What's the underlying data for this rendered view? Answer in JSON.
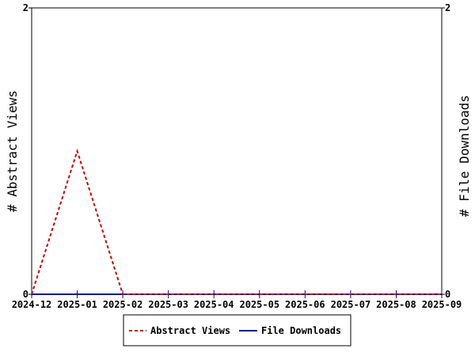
{
  "chart_data": {
    "type": "line",
    "x": [
      "2024-12",
      "2025-01",
      "2025-02",
      "2025-03",
      "2025-04",
      "2025-05",
      "2025-06",
      "2025-07",
      "2025-08",
      "2025-09"
    ],
    "x_tick_labels": [
      "2024-12",
      "2025-01",
      "2025-02",
      "2025-03",
      "2025-04",
      "2025-05",
      "2025-06",
      "2025-07",
      "2025-08",
      "2025-09"
    ],
    "series": [
      {
        "name": "Abstract Views",
        "axis": "left",
        "color": "#cc0000",
        "style": "dashed",
        "values": [
          0,
          1,
          0,
          0,
          0,
          0,
          0,
          0,
          0,
          0
        ]
      },
      {
        "name": "File Downloads",
        "axis": "right",
        "color": "#000099",
        "style": "solid",
        "values": [
          0,
          0,
          0,
          0,
          0,
          0,
          0,
          0,
          0,
          0
        ]
      }
    ],
    "ylabel_left": "# Abstract Views",
    "ylabel_right": "# File Downloads",
    "ylim_left": [
      0,
      2
    ],
    "ylim_right": [
      0,
      2
    ],
    "y_ticks_left": [
      "0",
      "2"
    ],
    "y_ticks_right": [
      "0",
      "2"
    ],
    "grid": false,
    "legend_position": "bottom-center"
  }
}
